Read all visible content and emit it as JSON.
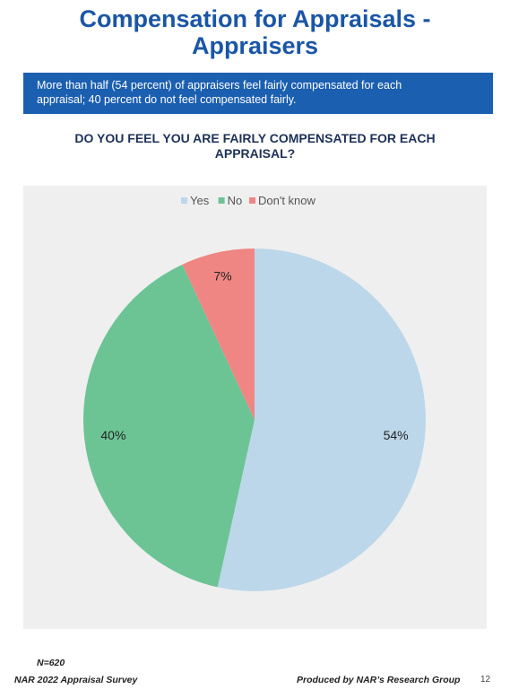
{
  "page": {
    "title_line1": "Compensation for Appraisals -",
    "title_line2": "Appraisers",
    "summary_line1": "More than half (54 percent) of appraisers feel fairly compensated for each",
    "summary_line2": "appraisal; 40 percent do not feel compensated fairly.",
    "question_line1": "DO YOU FEEL YOU ARE FAIRLY COMPENSATED FOR EACH",
    "question_line2": "APPRAISAL?",
    "sample_size": "N=620",
    "survey_name": "NAR 2022 Appraisal Survey",
    "producer": "Produced by NAR’s Research Group",
    "page_number": "12"
  },
  "chart_data": {
    "type": "pie",
    "categories": [
      "Yes",
      "No",
      "Don't know"
    ],
    "values": [
      54,
      40,
      7
    ],
    "labels": [
      "54%",
      "40%",
      "7%"
    ],
    "colors": [
      "#bdd7ea",
      "#6cc495",
      "#f08683"
    ],
    "legend_position": "top",
    "start_angle": "12 o'clock",
    "direction": "clockwise"
  }
}
